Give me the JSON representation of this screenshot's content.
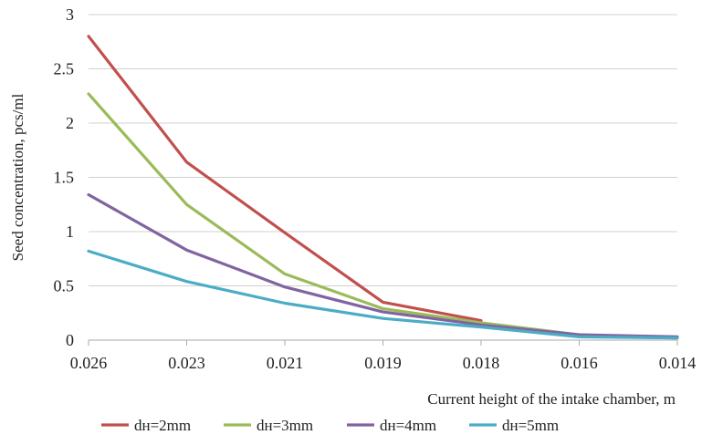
{
  "chart_data": {
    "type": "line",
    "title": "",
    "xlabel": "Current height of the intake chamber, m",
    "ylabel": "Seed concentration, pcs/ml",
    "categories": [
      "0.026",
      "0.023",
      "0.021",
      "0.019",
      "0.018",
      "0.016",
      "0.014"
    ],
    "ylim": [
      0,
      3
    ],
    "yticks": [
      "0",
      "0.5",
      "1",
      "1.5",
      "2",
      "2.5",
      "3"
    ],
    "grid": "horizontal",
    "legend_position": "bottom",
    "series": [
      {
        "name": "dн=2mm",
        "color": "#c0504d",
        "values": [
          2.8,
          1.64,
          0.99,
          0.35,
          0.18,
          null,
          null
        ]
      },
      {
        "name": "dн=3mm",
        "color": "#9bbb59",
        "values": [
          2.27,
          1.25,
          0.61,
          0.29,
          0.16,
          0.05,
          0.02
        ]
      },
      {
        "name": "dн=4mm",
        "color": "#8064a2",
        "values": [
          1.34,
          0.83,
          0.49,
          0.26,
          0.14,
          0.05,
          0.03
        ]
      },
      {
        "name": "dн=5mm",
        "color": "#4bacc6",
        "values": [
          0.82,
          0.54,
          0.34,
          0.2,
          0.12,
          0.03,
          0.02
        ]
      }
    ]
  }
}
